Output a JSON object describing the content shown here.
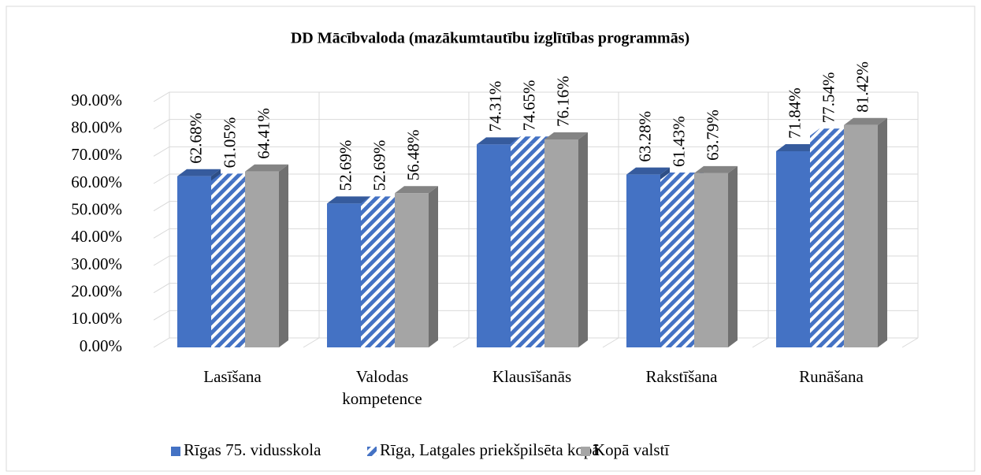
{
  "chart_data": {
    "type": "bar3d",
    "title": "DD Mācībvaloda (mazākumtautību izglītības programmās)",
    "categories": [
      "Lasīšana",
      "Valodas kompetence",
      "Klausīšanās",
      "Rakstīšana",
      "Runāšana"
    ],
    "series": [
      {
        "name": "Rīgas 75. vidusskola",
        "color": "#4472c4",
        "values": [
          62.68,
          52.69,
          74.31,
          63.28,
          71.84
        ],
        "value_labels": [
          "62.68%",
          "52.69%",
          "74.31%",
          "63.28%",
          "71.84%"
        ]
      },
      {
        "name": "Rīga, Latgales priekšpilsēta kopā",
        "color": "#4472c4",
        "pattern": "hatch",
        "values": [
          61.05,
          52.69,
          74.65,
          61.43,
          77.54
        ],
        "value_labels": [
          "61.05%",
          "52.69%",
          "74.65%",
          "61.43%",
          "77.54%"
        ]
      },
      {
        "name": "Kopā valstī",
        "color": "#a5a5a5",
        "values": [
          64.41,
          56.48,
          76.16,
          63.79,
          81.42
        ],
        "value_labels": [
          "64.41%",
          "56.48%",
          "76.16%",
          "63.79%",
          "81.42%"
        ]
      }
    ],
    "ylim": [
      0,
      90
    ],
    "yticks": [
      {
        "value": 0,
        "label": "0.00%"
      },
      {
        "value": 10,
        "label": "10.00%"
      },
      {
        "value": 20,
        "label": "20.00%"
      },
      {
        "value": 30,
        "label": "30.00%"
      },
      {
        "value": 40,
        "label": "40.00%"
      },
      {
        "value": 50,
        "label": "50.00%"
      },
      {
        "value": 60,
        "label": "60.00%"
      },
      {
        "value": 70,
        "label": "70.00%"
      },
      {
        "value": 80,
        "label": "80.00%"
      },
      {
        "value": 90,
        "label": "90.00%"
      }
    ],
    "grid": true,
    "legend": "bottom"
  }
}
